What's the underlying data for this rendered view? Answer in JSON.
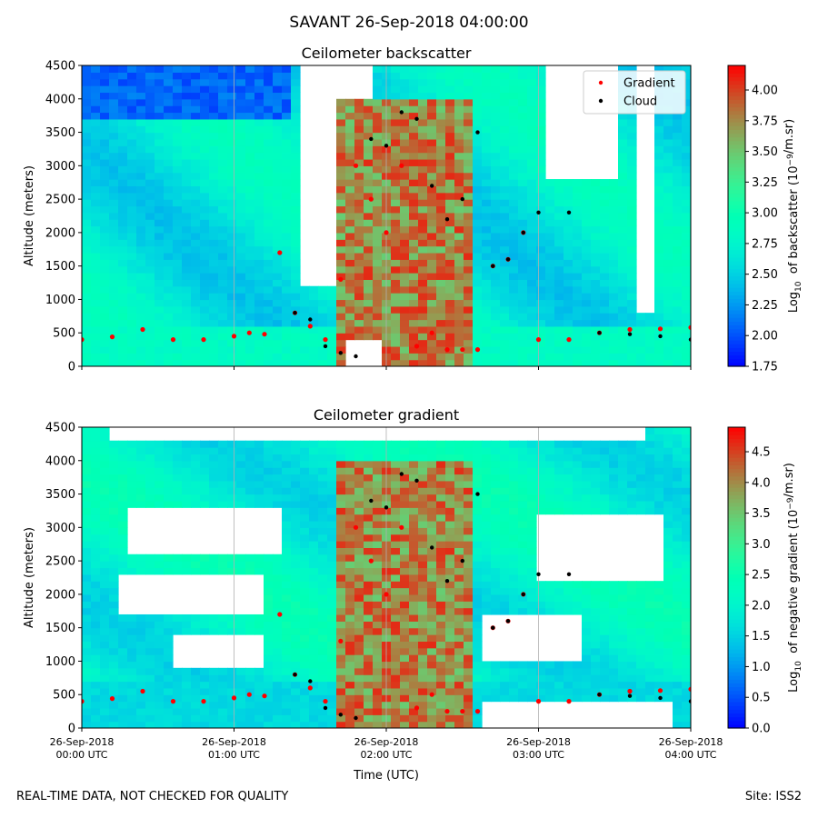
{
  "page": {
    "suptitle": "SAVANT 26-Sep-2018 04:00:00",
    "footer_left": "REAL-TIME DATA, NOT CHECKED FOR QUALITY",
    "footer_right": "Site: ISS2"
  },
  "chart_data": [
    {
      "type": "heatmap",
      "title": "Ceilometer backscatter",
      "xlabel": "",
      "ylabel": "Altitude (meters)",
      "xlim": [
        0,
        4
      ],
      "ylim": [
        0,
        4500
      ],
      "yticks": [
        0,
        500,
        1000,
        1500,
        2000,
        2500,
        3000,
        3500,
        4000,
        4500
      ],
      "xtick_labels": [],
      "colorbar": {
        "label": "Log10 of backscatter (10^-9/m.sr)",
        "range": [
          1.75,
          4.2
        ],
        "ticks": [
          1.75,
          2.0,
          2.25,
          2.5,
          2.75,
          3.0,
          3.25,
          3.5,
          3.75,
          4.0
        ],
        "tick_labels": [
          "1.75",
          "2.00",
          "2.25",
          "2.50",
          "2.75",
          "3.00",
          "3.25",
          "3.50",
          "3.75",
          "4.00"
        ],
        "colormap": "rainbow"
      },
      "legend": {
        "placement": "top-right",
        "entries": [
          {
            "label": "Gradient",
            "color": "#ff0000"
          },
          {
            "label": "Cloud",
            "color": "#000000"
          }
        ]
      },
      "grid": "vertical lines at each hour",
      "series": [
        {
          "name": "Gradient",
          "marker": "red dots",
          "x": [
            0.0,
            0.2,
            0.4,
            0.6,
            0.8,
            1.0,
            1.1,
            1.2,
            1.3,
            1.4,
            1.5,
            1.6,
            1.7,
            1.8,
            1.9,
            2.0,
            2.1,
            2.2,
            2.3,
            2.4,
            2.5,
            2.6,
            2.7,
            2.8,
            2.9,
            3.0,
            3.2,
            3.4,
            3.6,
            3.8,
            4.0
          ],
          "y": [
            400,
            440,
            550,
            400,
            400,
            450,
            500,
            480,
            1700,
            800,
            600,
            400,
            1300,
            3000,
            2500,
            2000,
            3000,
            300,
            500,
            250,
            250,
            250,
            1500,
            1600,
            2000,
            400,
            400,
            500,
            550,
            560,
            580
          ]
        },
        {
          "name": "Cloud",
          "marker": "black dots",
          "x": [
            1.4,
            1.5,
            1.6,
            1.7,
            1.8,
            1.9,
            2.0,
            2.1,
            2.2,
            2.3,
            2.4,
            2.5,
            2.6,
            2.7,
            2.8,
            2.9,
            3.0,
            3.2,
            3.4,
            3.6,
            3.8,
            4.0
          ],
          "y": [
            800,
            700,
            300,
            200,
            150,
            3400,
            3300,
            3800,
            3700,
            2700,
            2200,
            2500,
            3500,
            1500,
            1600,
            2000,
            2300,
            2300,
            500,
            480,
            450,
            400
          ]
        }
      ]
    },
    {
      "type": "heatmap",
      "title": "Ceilometer gradient",
      "xlabel": "Time (UTC)",
      "ylabel": "Altitude (meters)",
      "xlim": [
        0,
        4
      ],
      "ylim": [
        0,
        4500
      ],
      "yticks": [
        0,
        500,
        1000,
        1500,
        2000,
        2500,
        3000,
        3500,
        4000,
        4500
      ],
      "xticks": [
        0,
        1,
        2,
        3,
        4
      ],
      "xtick_labels": [
        [
          "26-Sep-2018",
          "00:00 UTC"
        ],
        [
          "26-Sep-2018",
          "01:00 UTC"
        ],
        [
          "26-Sep-2018",
          "02:00 UTC"
        ],
        [
          "26-Sep-2018",
          "03:00 UTC"
        ],
        [
          "26-Sep-2018",
          "04:00 UTC"
        ]
      ],
      "colorbar": {
        "label": "Log10 of negative gradient (10^-9/m.sr)",
        "range": [
          0.0,
          4.9
        ],
        "ticks": [
          0.0,
          0.5,
          1.0,
          1.5,
          2.0,
          2.5,
          3.0,
          3.5,
          4.0,
          4.5
        ],
        "tick_labels": [
          "0.0",
          "0.5",
          "1.0",
          "1.5",
          "2.0",
          "2.5",
          "3.0",
          "3.5",
          "4.0",
          "4.5"
        ],
        "colormap": "rainbow"
      },
      "grid": "vertical lines at each hour",
      "series": [
        {
          "name": "Gradient",
          "marker": "red dots",
          "x": [
            0.0,
            0.2,
            0.4,
            0.6,
            0.8,
            1.0,
            1.1,
            1.2,
            1.3,
            1.4,
            1.5,
            1.6,
            1.7,
            1.8,
            1.9,
            2.0,
            2.1,
            2.2,
            2.3,
            2.4,
            2.5,
            2.6,
            2.7,
            2.8,
            2.9,
            3.0,
            3.2,
            3.4,
            3.6,
            3.8,
            4.0
          ],
          "y": [
            400,
            440,
            550,
            400,
            400,
            450,
            500,
            480,
            1700,
            800,
            600,
            400,
            1300,
            3000,
            2500,
            2000,
            3000,
            300,
            500,
            250,
            250,
            250,
            1500,
            1600,
            2000,
            400,
            400,
            500,
            550,
            560,
            580
          ]
        },
        {
          "name": "Cloud",
          "marker": "black dots",
          "x": [
            1.4,
            1.5,
            1.6,
            1.7,
            1.8,
            1.9,
            2.0,
            2.1,
            2.2,
            2.3,
            2.4,
            2.5,
            2.6,
            2.7,
            2.8,
            2.9,
            3.0,
            3.2,
            3.4,
            3.6,
            3.8,
            4.0
          ],
          "y": [
            800,
            700,
            300,
            200,
            150,
            3400,
            3300,
            3800,
            3700,
            2700,
            2200,
            2500,
            3500,
            1500,
            1600,
            2000,
            2300,
            2300,
            500,
            480,
            450,
            400
          ]
        }
      ]
    }
  ]
}
